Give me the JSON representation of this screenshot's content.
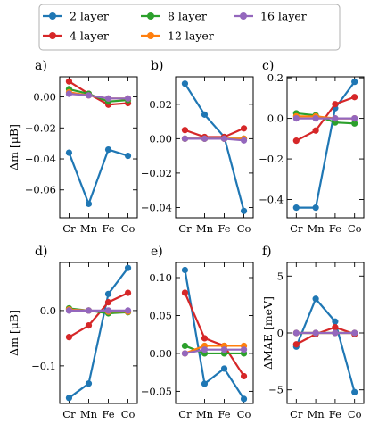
{
  "legend": {
    "entries": [
      {
        "name": "2 layer",
        "color": "#1f77b4"
      },
      {
        "name": "4 layer",
        "color": "#d62728"
      },
      {
        "name": "8 layer",
        "color": "#2ca02c"
      },
      {
        "name": "12 layer",
        "color": "#ff7f0e"
      },
      {
        "name": "16 layer",
        "color": "#9467bd"
      }
    ],
    "placement": "top-center"
  },
  "chart_data": [
    {
      "panel": "a)",
      "type": "line",
      "ylabel": "Δm [μB]",
      "categories": [
        "Cr",
        "Mn",
        "Fe",
        "Co"
      ],
      "ylim": [
        -0.078,
        0.013
      ],
      "yticks": [
        {
          "v": 0.0,
          "label": "0.00"
        },
        {
          "v": -0.02,
          "label": "−0.02"
        },
        {
          "v": -0.04,
          "label": "−0.04"
        },
        {
          "v": -0.06,
          "label": "−0.06"
        }
      ],
      "series": [
        {
          "name": "2 layer",
          "values": [
            -0.036,
            -0.069,
            -0.034,
            -0.038
          ]
        },
        {
          "name": "4 layer",
          "values": [
            0.01,
            0.002,
            -0.005,
            -0.004
          ]
        },
        {
          "name": "8 layer",
          "values": [
            0.005,
            0.002,
            -0.003,
            -0.002
          ]
        },
        {
          "name": "12 layer",
          "values": [
            0.003,
            0.001,
            -0.001,
            -0.001
          ]
        },
        {
          "name": "16 layer",
          "values": [
            0.002,
            0.001,
            -0.001,
            -0.001
          ]
        }
      ]
    },
    {
      "panel": "b)",
      "type": "line",
      "ylabel": "",
      "categories": [
        "Cr",
        "Mn",
        "Fe",
        "Co"
      ],
      "ylim": [
        -0.046,
        0.036
      ],
      "yticks": [
        {
          "v": 0.02,
          "label": "0.02"
        },
        {
          "v": 0.0,
          "label": "0.00"
        },
        {
          "v": -0.02,
          "label": "−0.02"
        },
        {
          "v": -0.04,
          "label": "−0.04"
        }
      ],
      "series": [
        {
          "name": "2 layer",
          "values": [
            0.032,
            0.014,
            0.001,
            -0.042
          ]
        },
        {
          "name": "4 layer",
          "values": [
            0.005,
            0.001,
            0.001,
            0.006
          ]
        },
        {
          "name": "8 layer",
          "values": [
            0.0,
            0.0,
            0.0,
            0.0
          ]
        },
        {
          "name": "12 layer",
          "values": [
            0.0,
            0.0,
            0.0,
            0.0
          ]
        },
        {
          "name": "16 layer",
          "values": [
            0.0,
            0.0,
            0.0,
            -0.001
          ]
        }
      ]
    },
    {
      "panel": "c)",
      "type": "line",
      "ylabel": "",
      "categories": [
        "Cr",
        "Mn",
        "Fe",
        "Co"
      ],
      "ylim": [
        -0.49,
        0.205
      ],
      "yticks": [
        {
          "v": 0.2,
          "label": "0.2"
        },
        {
          "v": 0.0,
          "label": "0.0"
        },
        {
          "v": -0.2,
          "label": "−0.2"
        },
        {
          "v": -0.4,
          "label": "−0.4"
        }
      ],
      "series": [
        {
          "name": "2 layer",
          "values": [
            -0.44,
            -0.44,
            0.05,
            0.18
          ]
        },
        {
          "name": "4 layer",
          "values": [
            -0.11,
            -0.06,
            0.07,
            0.105
          ]
        },
        {
          "name": "8 layer",
          "values": [
            0.025,
            0.015,
            -0.02,
            -0.025
          ]
        },
        {
          "name": "12 layer",
          "values": [
            0.01,
            0.01,
            0.0,
            0.0
          ]
        },
        {
          "name": "16 layer",
          "values": [
            0.0,
            0.0,
            0.0,
            0.0
          ]
        }
      ]
    },
    {
      "panel": "d)",
      "type": "line",
      "ylabel": "Δm [μB]",
      "categories": [
        "Cr",
        "Mn",
        "Fe",
        "Co"
      ],
      "ylim": [
        -0.168,
        0.087
      ],
      "yticks": [
        {
          "v": 0.0,
          "label": "0.0"
        },
        {
          "v": -0.1,
          "label": "−0.1"
        }
      ],
      "series": [
        {
          "name": "2 layer",
          "values": [
            -0.158,
            -0.132,
            0.03,
            0.077
          ]
        },
        {
          "name": "4 layer",
          "values": [
            -0.048,
            -0.027,
            0.015,
            0.032
          ]
        },
        {
          "name": "8 layer",
          "values": [
            0.004,
            0.0,
            -0.005,
            -0.003
          ]
        },
        {
          "name": "12 layer",
          "values": [
            0.002,
            0.0,
            -0.002,
            -0.002
          ]
        },
        {
          "name": "16 layer",
          "values": [
            0.0,
            0.0,
            0.0,
            0.0
          ]
        }
      ]
    },
    {
      "panel": "e)",
      "type": "line",
      "ylabel": "",
      "categories": [
        "Cr",
        "Mn",
        "Fe",
        "Co"
      ],
      "ylim": [
        -0.066,
        0.12
      ],
      "yticks": [
        {
          "v": 0.1,
          "label": "0.10"
        },
        {
          "v": 0.05,
          "label": "0.05"
        },
        {
          "v": 0.0,
          "label": "0.00"
        },
        {
          "v": -0.05,
          "label": "−0.05"
        }
      ],
      "series": [
        {
          "name": "2 layer",
          "values": [
            0.11,
            -0.04,
            -0.02,
            -0.06
          ]
        },
        {
          "name": "4 layer",
          "values": [
            0.08,
            0.02,
            0.01,
            -0.03
          ]
        },
        {
          "name": "8 layer",
          "values": [
            0.01,
            0.0,
            0.0,
            0.0
          ]
        },
        {
          "name": "12 layer",
          "values": [
            0.0,
            0.01,
            0.01,
            0.01
          ]
        },
        {
          "name": "16 layer",
          "values": [
            0.0,
            0.005,
            0.005,
            0.005
          ]
        }
      ]
    },
    {
      "panel": "f)",
      "type": "line",
      "ylabel": "ΔMAE [meV]",
      "categories": [
        "Cr",
        "Mn",
        "Fe",
        "Co"
      ],
      "ylim": [
        -6.2,
        6.2
      ],
      "yticks": [
        {
          "v": 5,
          "label": "5"
        },
        {
          "v": 0,
          "label": "0"
        },
        {
          "v": -5,
          "label": "−5"
        }
      ],
      "series": [
        {
          "name": "2 layer",
          "values": [
            -1.2,
            3.0,
            1.0,
            -5.2
          ]
        },
        {
          "name": "4 layer",
          "values": [
            -1.0,
            -0.1,
            0.5,
            -0.1
          ]
        },
        {
          "name": "8 layer",
          "values": [
            0.0,
            0.0,
            0.0,
            0.0
          ]
        },
        {
          "name": "12 layer",
          "values": [
            0.0,
            0.0,
            0.0,
            0.0
          ]
        },
        {
          "name": "16 layer",
          "values": [
            0.0,
            0.0,
            0.0,
            0.0
          ]
        }
      ]
    }
  ]
}
